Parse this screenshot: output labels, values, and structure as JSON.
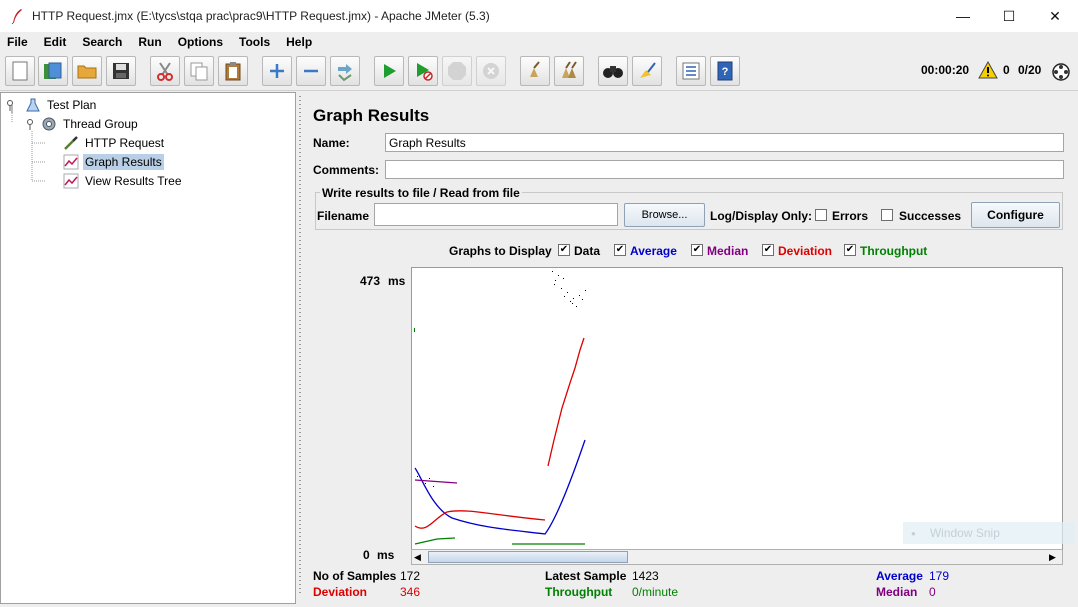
{
  "window": {
    "title": "HTTP Request.jmx (E:\\tycs\\stqa prac\\prac9\\HTTP Request.jmx) - Apache JMeter (5.3)",
    "minimize": "—",
    "maximize": "☐",
    "close": "✕"
  },
  "menu": [
    "File",
    "Edit",
    "Search",
    "Run",
    "Options",
    "Tools",
    "Help"
  ],
  "toolbar": {
    "elapsed": "00:00:20",
    "warnings": "0",
    "threads": "0/20"
  },
  "tree": {
    "items": [
      {
        "label": "Test Plan"
      },
      {
        "label": "Thread Group"
      },
      {
        "label": "HTTP Request"
      },
      {
        "label": "Graph Results"
      },
      {
        "label": "View Results Tree"
      }
    ]
  },
  "panel": {
    "heading": "Graph Results",
    "name_label": "Name:",
    "name_value": "Graph Results",
    "comments_label": "Comments:",
    "comments_value": "",
    "file_group_title": "Write results to file / Read from file",
    "filename_label": "Filename",
    "filename_value": "",
    "browse_label": "Browse...",
    "log_display_label": "Log/Display Only:",
    "errors_label": "Errors",
    "successes_label": "Successes",
    "configure_label": "Configure",
    "graphs_label": "Graphs to Display",
    "series_toggles": [
      {
        "label": "Data",
        "color": "#000000"
      },
      {
        "label": "Average",
        "color": "#0000cc"
      },
      {
        "label": "Median",
        "color": "#800080"
      },
      {
        "label": "Deviation",
        "color": "#dd0000"
      },
      {
        "label": "Throughput",
        "color": "#008000"
      }
    ],
    "y_max_label": "473",
    "y_min_label": "0",
    "y_unit": "ms"
  },
  "stats": {
    "samples_label": "No of Samples",
    "samples_value": "172",
    "latest_label": "Latest Sample",
    "latest_value": "1423",
    "average_label": "Average",
    "average_value": "179",
    "deviation_label": "Deviation",
    "deviation_value": "346",
    "throughput_label": "Throughput",
    "throughput_value": "0/minute",
    "median_label": "Median",
    "median_value": "0"
  },
  "overlay": {
    "snip": "Window Snip"
  }
}
